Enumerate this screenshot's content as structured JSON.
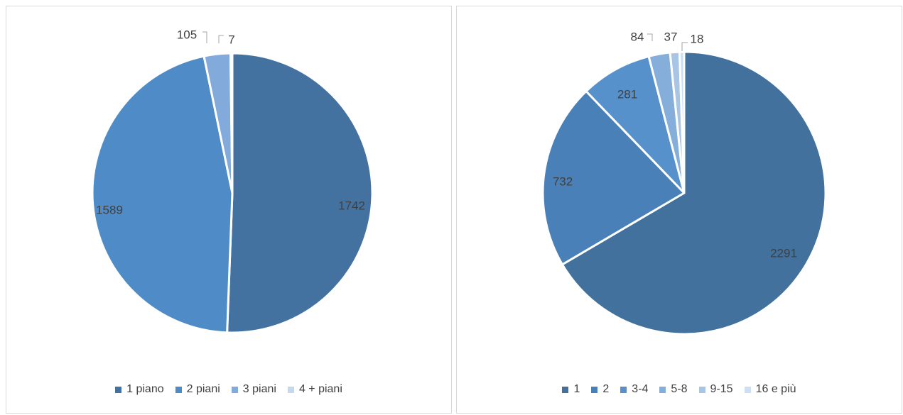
{
  "chart_data": [
    {
      "type": "pie",
      "title": "",
      "categories": [
        "1 piano",
        "2 piani",
        "3 piani",
        "4 + piani"
      ],
      "values": [
        1742,
        1589,
        105,
        7
      ],
      "colors": [
        "#4472a0",
        "#4f8cc7",
        "#82abdc",
        "#c5d8ef"
      ],
      "legend_position": "bottom",
      "start_angle": "12 o'clock",
      "direction": "clockwise"
    },
    {
      "type": "pie",
      "title": "",
      "categories": [
        "1",
        "2",
        "3-4",
        "5-8",
        "9-15",
        "16 e più"
      ],
      "values": [
        2291,
        732,
        281,
        84,
        37,
        18
      ],
      "colors": [
        "#41719c",
        "#4a80b8",
        "#5791cc",
        "#85aedb",
        "#a9c5e6",
        "#cddff2"
      ],
      "legend_position": "bottom",
      "start_angle": "12 o'clock",
      "direction": "clockwise"
    }
  ]
}
